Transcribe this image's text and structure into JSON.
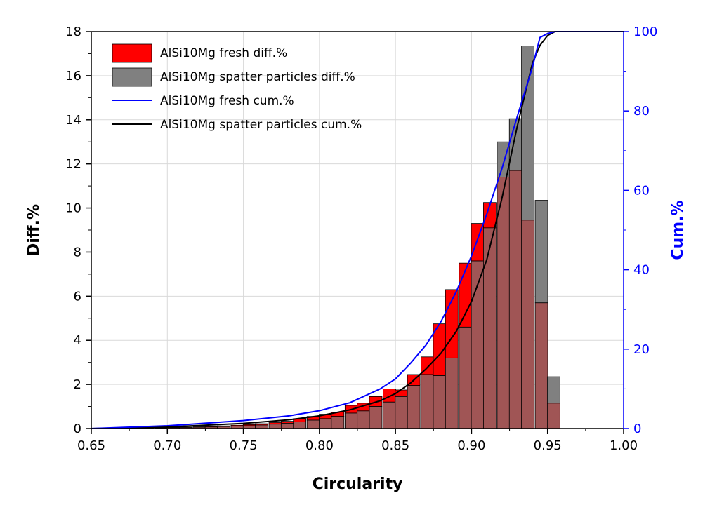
{
  "chart_data": {
    "type": "bar",
    "title": "",
    "xlabel": "Circularity",
    "ylabel": "Diff.%",
    "y2label": "Cum.%",
    "xlim": [
      0.65,
      1.0
    ],
    "ylim": [
      0,
      18
    ],
    "y2lim": [
      0,
      100
    ],
    "xticks": [
      "0.65",
      "0.70",
      "0.75",
      "0.80",
      "0.85",
      "0.90",
      "0.95",
      "1.00"
    ],
    "yticks": [
      "0",
      "2",
      "4",
      "6",
      "8",
      "10",
      "12",
      "14",
      "16",
      "18"
    ],
    "y2ticks": [
      "0",
      "20",
      "40",
      "60",
      "80",
      "100"
    ],
    "grid": true,
    "legend_position": "top-left",
    "bin_width": 0.0083,
    "colors": {
      "fresh": "#ff0000",
      "spatter": "#808080",
      "overlap": "#a05555",
      "fresh_cum": "#0000ff",
      "spatter_cum": "#000000",
      "right_axis": "#0000ff"
    },
    "series": [
      {
        "name": "AlSi10Mg fresh diff.%",
        "kind": "bar",
        "axis": "left",
        "x": [
          0.654,
          0.662,
          0.671,
          0.679,
          0.687,
          0.696,
          0.704,
          0.712,
          0.721,
          0.729,
          0.737,
          0.746,
          0.754,
          0.762,
          0.771,
          0.779,
          0.787,
          0.796,
          0.804,
          0.812,
          0.821,
          0.829,
          0.837,
          0.846,
          0.854,
          0.862,
          0.871,
          0.879,
          0.887,
          0.896,
          0.904,
          0.912,
          0.921,
          0.929,
          0.937,
          0.946,
          0.954
        ],
        "values": [
          0.02,
          0.02,
          0.03,
          0.03,
          0.04,
          0.04,
          0.05,
          0.07,
          0.08,
          0.1,
          0.12,
          0.15,
          0.18,
          0.22,
          0.27,
          0.33,
          0.45,
          0.55,
          0.65,
          0.75,
          1.05,
          1.15,
          1.45,
          1.8,
          1.75,
          2.45,
          3.25,
          4.75,
          6.3,
          7.5,
          9.3,
          10.25,
          11.4,
          11.7,
          9.45,
          5.7,
          1.15
        ]
      },
      {
        "name": "AlSi10Mg spatter particles diff.%",
        "kind": "bar",
        "axis": "left",
        "x": [
          0.654,
          0.662,
          0.671,
          0.679,
          0.687,
          0.696,
          0.704,
          0.712,
          0.721,
          0.729,
          0.737,
          0.746,
          0.754,
          0.762,
          0.771,
          0.779,
          0.787,
          0.796,
          0.804,
          0.812,
          0.821,
          0.829,
          0.837,
          0.846,
          0.854,
          0.862,
          0.871,
          0.879,
          0.887,
          0.896,
          0.904,
          0.912,
          0.921,
          0.929,
          0.937,
          0.946,
          0.954
        ],
        "values": [
          0.01,
          0.01,
          0.02,
          0.02,
          0.03,
          0.03,
          0.04,
          0.05,
          0.06,
          0.07,
          0.09,
          0.11,
          0.13,
          0.16,
          0.2,
          0.24,
          0.3,
          0.38,
          0.45,
          0.55,
          0.7,
          0.8,
          1.0,
          1.2,
          1.45,
          1.95,
          2.45,
          2.4,
          3.2,
          4.6,
          7.6,
          9.1,
          13.0,
          14.05,
          17.35,
          10.35,
          2.35
        ]
      },
      {
        "name": "AlSi10Mg fresh cum.%",
        "kind": "line",
        "axis": "right",
        "x": [
          0.65,
          0.7,
          0.75,
          0.78,
          0.8,
          0.82,
          0.84,
          0.85,
          0.86,
          0.87,
          0.88,
          0.89,
          0.9,
          0.91,
          0.92,
          0.93,
          0.94,
          0.945,
          0.95,
          0.955,
          1.0
        ],
        "values": [
          0,
          0.7,
          2.0,
          3.2,
          4.5,
          6.5,
          10.0,
          12.5,
          16.5,
          21.0,
          27.0,
          34.5,
          43.5,
          54.0,
          65.5,
          78.5,
          91.0,
          98.5,
          99.5,
          100,
          100
        ]
      },
      {
        "name": "AlSi10Mg spatter particles cum.%",
        "kind": "line",
        "axis": "right",
        "x": [
          0.65,
          0.7,
          0.75,
          0.78,
          0.8,
          0.82,
          0.84,
          0.85,
          0.86,
          0.87,
          0.88,
          0.89,
          0.9,
          0.91,
          0.92,
          0.93,
          0.94,
          0.945,
          0.95,
          0.955,
          1.0
        ],
        "values": [
          0,
          0.4,
          1.3,
          2.2,
          3.2,
          4.7,
          7.0,
          8.8,
          11.5,
          15.0,
          19.0,
          24.5,
          32.0,
          42.5,
          58.0,
          76.0,
          92.0,
          96.5,
          99.0,
          100,
          100
        ]
      }
    ]
  }
}
